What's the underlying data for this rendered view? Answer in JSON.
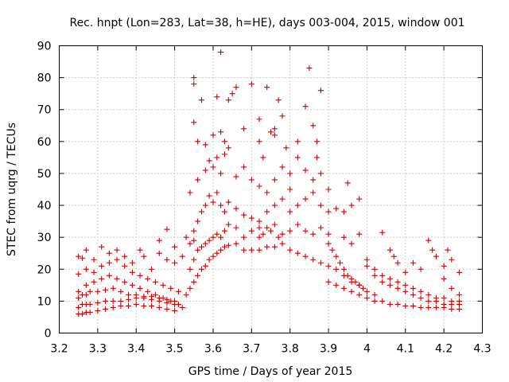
{
  "chart_data": {
    "type": "scatter",
    "title": "Rec. hnpt (Lon=283, Lat=38, h=HE), days 003-004, 2015, window 001",
    "xlabel": "GPS time / Days of year 2015",
    "ylabel": "STEC from uqrg / TECUs",
    "xlim": [
      3.2,
      4.3
    ],
    "ylim": [
      0,
      90
    ],
    "x_ticks": [
      "3.2",
      "3.3",
      "3.4",
      "3.5",
      "3.6",
      "3.7",
      "3.8",
      "3.9",
      "4",
      "4.1",
      "4.2",
      "4.3"
    ],
    "y_ticks": [
      "0",
      "10",
      "20",
      "30",
      "40",
      "50",
      "60",
      "70",
      "80",
      "90"
    ],
    "grid": true,
    "legend": "none",
    "marker": "plus",
    "color": "#cc0000",
    "series": [
      {
        "points": [
          [
            3.25,
            6
          ],
          [
            3.26,
            6
          ],
          [
            3.27,
            6.5
          ],
          [
            3.28,
            6.5
          ],
          [
            3.3,
            7
          ],
          [
            3.32,
            7.5
          ],
          [
            3.34,
            8
          ],
          [
            3.36,
            8.5
          ],
          [
            3.38,
            8.5
          ],
          [
            3.4,
            9
          ],
          [
            3.42,
            8.5
          ],
          [
            3.44,
            8.5
          ],
          [
            3.46,
            8
          ],
          [
            3.48,
            7.5
          ],
          [
            3.5,
            7
          ],
          [
            3.52,
            8
          ],
          [
            3.25,
            8
          ],
          [
            3.26,
            9
          ],
          [
            3.27,
            9
          ],
          [
            3.28,
            9
          ],
          [
            3.3,
            9.5
          ],
          [
            3.32,
            10
          ],
          [
            3.34,
            10
          ],
          [
            3.36,
            10
          ],
          [
            3.38,
            10.5
          ],
          [
            3.4,
            11
          ],
          [
            3.42,
            11
          ],
          [
            3.44,
            10.5
          ],
          [
            3.46,
            10
          ],
          [
            3.48,
            9.5
          ],
          [
            3.5,
            9
          ],
          [
            3.25,
            11
          ],
          [
            3.26,
            12
          ],
          [
            3.27,
            12
          ],
          [
            3.28,
            13
          ],
          [
            3.3,
            13
          ],
          [
            3.32,
            13.5
          ],
          [
            3.34,
            14
          ],
          [
            3.36,
            13
          ],
          [
            3.38,
            12
          ],
          [
            3.4,
            12
          ],
          [
            3.42,
            11.5
          ],
          [
            3.44,
            11.5
          ],
          [
            3.46,
            11
          ],
          [
            3.48,
            10.5
          ],
          [
            3.5,
            10
          ],
          [
            3.25,
            13
          ],
          [
            3.27,
            15
          ],
          [
            3.29,
            16
          ],
          [
            3.31,
            17
          ],
          [
            3.33,
            18
          ],
          [
            3.35,
            17
          ],
          [
            3.37,
            16
          ],
          [
            3.39,
            15
          ],
          [
            3.41,
            14
          ],
          [
            3.43,
            13
          ],
          [
            3.45,
            12
          ],
          [
            3.47,
            11
          ],
          [
            3.49,
            10
          ],
          [
            3.51,
            9
          ],
          [
            3.25,
            18.5
          ],
          [
            3.27,
            20
          ],
          [
            3.29,
            19
          ],
          [
            3.31,
            21
          ],
          [
            3.33,
            22
          ],
          [
            3.35,
            23
          ],
          [
            3.37,
            21
          ],
          [
            3.39,
            19
          ],
          [
            3.41,
            18
          ],
          [
            3.43,
            17
          ],
          [
            3.45,
            16
          ],
          [
            3.47,
            15
          ],
          [
            3.49,
            14
          ],
          [
            3.51,
            13
          ],
          [
            3.25,
            24
          ],
          [
            3.26,
            23.5
          ],
          [
            3.27,
            26
          ],
          [
            3.29,
            23
          ],
          [
            3.31,
            27
          ],
          [
            3.33,
            25
          ],
          [
            3.35,
            26
          ],
          [
            3.37,
            24
          ],
          [
            3.39,
            22
          ],
          [
            3.41,
            26
          ],
          [
            3.42,
            24
          ],
          [
            3.44,
            20
          ],
          [
            3.46,
            25
          ],
          [
            3.48,
            23
          ],
          [
            3.5,
            22
          ],
          [
            3.52,
            24
          ],
          [
            3.46,
            29
          ],
          [
            3.48,
            32.5
          ],
          [
            3.5,
            27
          ],
          [
            3.53,
            30
          ],
          [
            3.55,
            29
          ],
          [
            3.53,
            12
          ],
          [
            3.54,
            14
          ],
          [
            3.55,
            16
          ],
          [
            3.56,
            18
          ],
          [
            3.57,
            20
          ],
          [
            3.58,
            21
          ],
          [
            3.59,
            23
          ],
          [
            3.6,
            24
          ],
          [
            3.61,
            25
          ],
          [
            3.62,
            26
          ],
          [
            3.63,
            27
          ],
          [
            3.64,
            27.5
          ],
          [
            3.66,
            28
          ],
          [
            3.68,
            26
          ],
          [
            3.7,
            26
          ],
          [
            3.54,
            20
          ],
          [
            3.55,
            23
          ],
          [
            3.56,
            26
          ],
          [
            3.57,
            27
          ],
          [
            3.58,
            28
          ],
          [
            3.59,
            29
          ],
          [
            3.6,
            30
          ],
          [
            3.61,
            31
          ],
          [
            3.62,
            30
          ],
          [
            3.63,
            32
          ],
          [
            3.64,
            34
          ],
          [
            3.66,
            33
          ],
          [
            3.68,
            30
          ],
          [
            3.7,
            32
          ],
          [
            3.72,
            33
          ],
          [
            3.54,
            28
          ],
          [
            3.55,
            32
          ],
          [
            3.56,
            35
          ],
          [
            3.57,
            38
          ],
          [
            3.58,
            40
          ],
          [
            3.59,
            43
          ],
          [
            3.6,
            41
          ],
          [
            3.61,
            44
          ],
          [
            3.62,
            40
          ],
          [
            3.63,
            38
          ],
          [
            3.64,
            41
          ],
          [
            3.66,
            39
          ],
          [
            3.68,
            37
          ],
          [
            3.7,
            36
          ],
          [
            3.72,
            35
          ],
          [
            3.54,
            44
          ],
          [
            3.56,
            48
          ],
          [
            3.58,
            51
          ],
          [
            3.59,
            54
          ],
          [
            3.6,
            52
          ],
          [
            3.61,
            55
          ],
          [
            3.62,
            50
          ],
          [
            3.63,
            56
          ],
          [
            3.64,
            58
          ],
          [
            3.66,
            49
          ],
          [
            3.68,
            52
          ],
          [
            3.7,
            48
          ],
          [
            3.72,
            46
          ],
          [
            3.55,
            66
          ],
          [
            3.56,
            60
          ],
          [
            3.57,
            73
          ],
          [
            3.58,
            59
          ],
          [
            3.6,
            62
          ],
          [
            3.61,
            74
          ],
          [
            3.62,
            63
          ],
          [
            3.63,
            60
          ],
          [
            3.64,
            73
          ],
          [
            3.66,
            77
          ],
          [
            3.68,
            64
          ],
          [
            3.7,
            78
          ],
          [
            3.72,
            67
          ],
          [
            3.74,
            77
          ],
          [
            3.76,
            64
          ],
          [
            3.55,
            80
          ],
          [
            3.55,
            78
          ],
          [
            3.62,
            88
          ],
          [
            3.65,
            75
          ],
          [
            3.72,
            60
          ],
          [
            3.73,
            55
          ],
          [
            3.74,
            44
          ],
          [
            3.75,
            63
          ],
          [
            3.76,
            62
          ],
          [
            3.77,
            73
          ],
          [
            3.78,
            68
          ],
          [
            3.79,
            58
          ],
          [
            3.8,
            45
          ],
          [
            3.82,
            60
          ],
          [
            3.84,
            71
          ],
          [
            3.85,
            83
          ],
          [
            3.86,
            65
          ],
          [
            3.87,
            60
          ],
          [
            3.88,
            76
          ],
          [
            3.72,
            30
          ],
          [
            3.73,
            31
          ],
          [
            3.74,
            33
          ],
          [
            3.75,
            32
          ],
          [
            3.76,
            34
          ],
          [
            3.77,
            30
          ],
          [
            3.78,
            31
          ],
          [
            3.8,
            32
          ],
          [
            3.82,
            34
          ],
          [
            3.84,
            32
          ],
          [
            3.86,
            31
          ],
          [
            3.88,
            33
          ],
          [
            3.9,
            31
          ],
          [
            3.72,
            26
          ],
          [
            3.74,
            27
          ],
          [
            3.76,
            27
          ],
          [
            3.78,
            28
          ],
          [
            3.8,
            26
          ],
          [
            3.82,
            25
          ],
          [
            3.84,
            24
          ],
          [
            3.86,
            23
          ],
          [
            3.88,
            22
          ],
          [
            3.9,
            21
          ],
          [
            3.92,
            20
          ],
          [
            3.94,
            18
          ],
          [
            3.96,
            16
          ],
          [
            3.98,
            15
          ],
          [
            3.74,
            38
          ],
          [
            3.76,
            40
          ],
          [
            3.78,
            42
          ],
          [
            3.8,
            38
          ],
          [
            3.82,
            40
          ],
          [
            3.84,
            42
          ],
          [
            3.86,
            44
          ],
          [
            3.88,
            40
          ],
          [
            3.9,
            38
          ],
          [
            3.92,
            39
          ],
          [
            3.94,
            38
          ],
          [
            3.96,
            40
          ],
          [
            3.98,
            42
          ],
          [
            3.95,
            47
          ],
          [
            3.76,
            48
          ],
          [
            3.78,
            52
          ],
          [
            3.8,
            50
          ],
          [
            3.82,
            55
          ],
          [
            3.84,
            51
          ],
          [
            3.86,
            48
          ],
          [
            3.88,
            50
          ],
          [
            3.9,
            45
          ],
          [
            3.87,
            55
          ],
          [
            3.9,
            28
          ],
          [
            3.91,
            26
          ],
          [
            3.92,
            24
          ],
          [
            3.93,
            22
          ],
          [
            3.94,
            20
          ],
          [
            3.95,
            18
          ],
          [
            3.96,
            17
          ],
          [
            3.97,
            16
          ],
          [
            3.98,
            15
          ],
          [
            3.99,
            14
          ],
          [
            4.0,
            13
          ],
          [
            4.02,
            12
          ],
          [
            3.9,
            16
          ],
          [
            3.92,
            15
          ],
          [
            3.94,
            14
          ],
          [
            3.96,
            13
          ],
          [
            3.98,
            12
          ],
          [
            4.0,
            11
          ],
          [
            4.02,
            10
          ],
          [
            4.04,
            10
          ],
          [
            4.06,
            9
          ],
          [
            4.08,
            9
          ],
          [
            4.1,
            8.5
          ],
          [
            4.12,
            8.5
          ],
          [
            4.14,
            8
          ],
          [
            4.16,
            8
          ],
          [
            4.18,
            8
          ],
          [
            4.2,
            8
          ],
          [
            4.22,
            7.5
          ],
          [
            4.24,
            7.5
          ],
          [
            3.94,
            30
          ],
          [
            3.96,
            28
          ],
          [
            3.98,
            31
          ],
          [
            4.0,
            21
          ],
          [
            4.02,
            18
          ],
          [
            4.04,
            16
          ],
          [
            4.06,
            15
          ],
          [
            4.08,
            14
          ],
          [
            4.1,
            13
          ],
          [
            4.12,
            12
          ],
          [
            4.14,
            11
          ],
          [
            4.16,
            10
          ],
          [
            4.18,
            10
          ],
          [
            4.2,
            9
          ],
          [
            4.22,
            9
          ],
          [
            4.24,
            9
          ],
          [
            4.0,
            23
          ],
          [
            4.02,
            20
          ],
          [
            4.04,
            18
          ],
          [
            4.06,
            17
          ],
          [
            4.08,
            16
          ],
          [
            4.1,
            15
          ],
          [
            4.12,
            14
          ],
          [
            4.14,
            13
          ],
          [
            4.16,
            12
          ],
          [
            4.18,
            11
          ],
          [
            4.2,
            11
          ],
          [
            4.22,
            10
          ],
          [
            4.24,
            10
          ],
          [
            4.04,
            31.5
          ],
          [
            4.06,
            26
          ],
          [
            4.07,
            24
          ],
          [
            4.08,
            22
          ],
          [
            4.1,
            19
          ],
          [
            4.12,
            22
          ],
          [
            4.14,
            20
          ],
          [
            4.16,
            29
          ],
          [
            4.17,
            26
          ],
          [
            4.18,
            24
          ],
          [
            4.2,
            21
          ],
          [
            4.21,
            26
          ],
          [
            4.22,
            23
          ],
          [
            4.24,
            19
          ],
          [
            4.2,
            17
          ],
          [
            4.22,
            14
          ],
          [
            4.24,
            12
          ]
        ]
      }
    ]
  }
}
